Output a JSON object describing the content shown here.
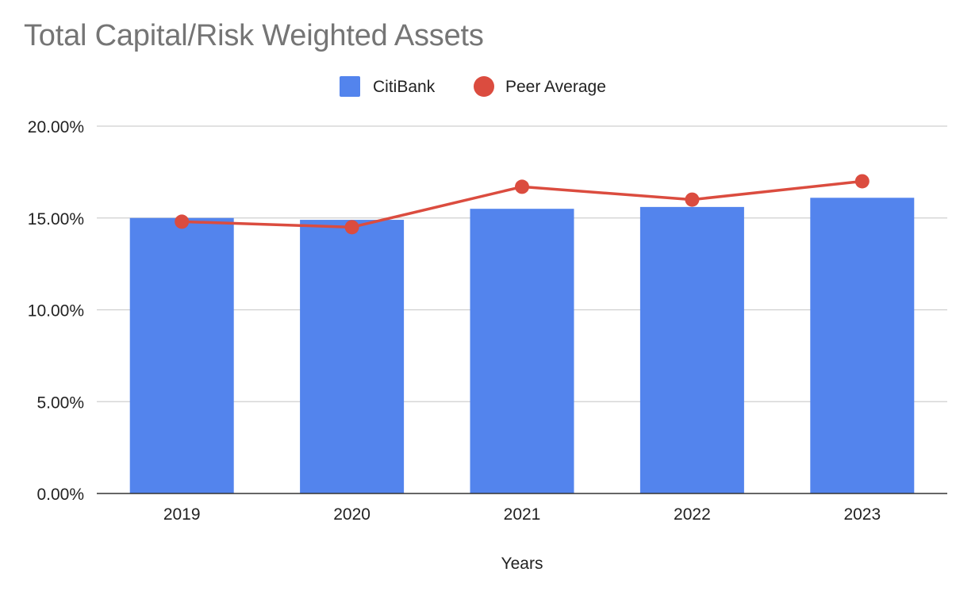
{
  "chart_data": {
    "type": "bar",
    "title": "Total Capital/Risk Weighted Assets",
    "xlabel": "Years",
    "ylabel": "",
    "categories": [
      "2019",
      "2020",
      "2021",
      "2022",
      "2023"
    ],
    "ylim": [
      0,
      20
    ],
    "yticks": [
      0,
      5,
      10,
      15,
      20
    ],
    "ytick_labels": [
      "0.00%",
      "5.00%",
      "10.00%",
      "15.00%",
      "20.00%"
    ],
    "grid": true,
    "legend_position": "top",
    "series": [
      {
        "name": "CitiBank",
        "type": "bar",
        "color": "#5384ed",
        "values": [
          15.0,
          14.9,
          15.5,
          15.6,
          16.1
        ]
      },
      {
        "name": "Peer Average",
        "type": "line",
        "color": "#db4c3f",
        "values": [
          14.8,
          14.5,
          16.7,
          16.0,
          17.0
        ]
      }
    ]
  }
}
